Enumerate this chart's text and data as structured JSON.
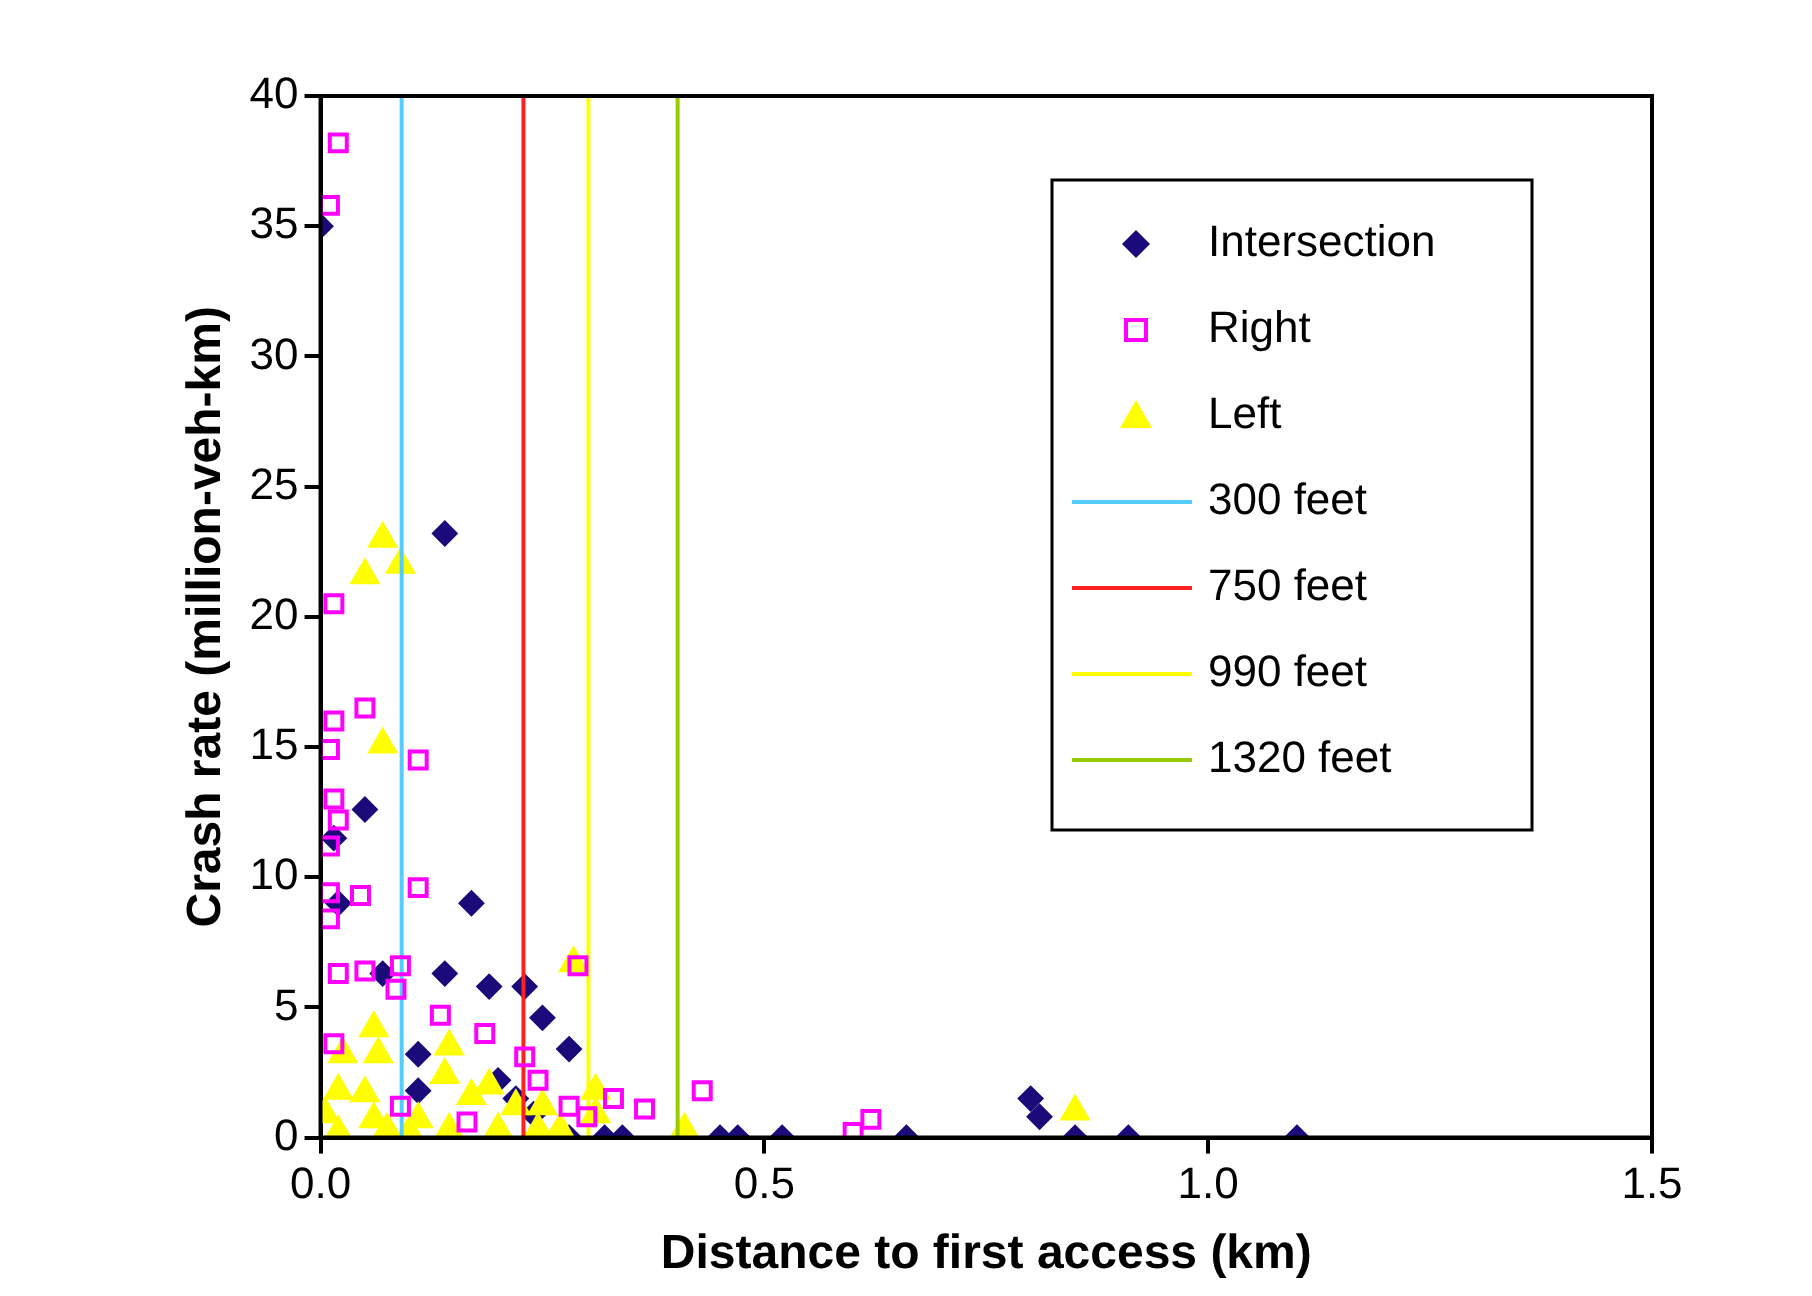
{
  "chart_data": {
    "type": "scatter",
    "xlabel": "Distance to first access (km)",
    "ylabel": "Crash rate (million-veh-km)",
    "xlim": [
      0,
      1.5
    ],
    "xticks": [
      {
        "value": 0,
        "label": "0.0"
      },
      {
        "value": 0.5,
        "label": "0.5"
      },
      {
        "value": 1,
        "label": "1.0"
      },
      {
        "value": 1.5,
        "label": "1.5"
      }
    ],
    "ylim": [
      0,
      40
    ],
    "yticks": [
      0,
      5,
      10,
      15,
      20,
      25,
      30,
      35,
      40
    ],
    "grid": false,
    "legend": "top right",
    "series": [
      {
        "name": "Intersection",
        "color": "#1a0a7a",
        "marker": "diamond",
        "x": [
          0,
          0.14,
          0.05,
          0.015,
          0.02,
          0.17,
          0.07,
          0.14,
          0.19,
          0.23,
          0.25,
          0.28,
          0.11,
          0.11,
          0.2,
          0.22,
          0.24,
          0.28,
          0.32,
          0.34,
          0.45,
          0.47,
          0.52,
          0.66,
          0.8,
          0.81,
          0.85,
          0.91,
          1.1
        ],
        "values": [
          35,
          23.2,
          12.6,
          11.5,
          9,
          9,
          6.3,
          6.3,
          5.8,
          5.8,
          4.6,
          3.4,
          3.2,
          1.8,
          2.2,
          1.5,
          0.9,
          0,
          0,
          0,
          0,
          0,
          0,
          0,
          1.5,
          0.8,
          0,
          0,
          0
        ]
      },
      {
        "name": "Right",
        "color": "#ff00ff",
        "marker": "square",
        "x": [
          0.02,
          0.01,
          0.015,
          0.05,
          0.015,
          0.01,
          0.11,
          0.015,
          0.02,
          0.01,
          0.01,
          0.045,
          0.11,
          0.01,
          0.09,
          0.05,
          0.02,
          0.085,
          0.135,
          0.185,
          0.23,
          0.29,
          0.015,
          0.09,
          0.245,
          0.33,
          0.365,
          0.43,
          0.3,
          0.28,
          0.6,
          0.62,
          0.165
        ],
        "values": [
          38.2,
          35.8,
          20.5,
          16.5,
          16,
          14.9,
          14.5,
          13,
          12.2,
          11.2,
          9.4,
          9.3,
          9.6,
          8.4,
          6.6,
          6.4,
          6.3,
          5.7,
          4.7,
          4,
          3.1,
          6.6,
          3.6,
          1.2,
          2.2,
          1.5,
          1.1,
          1.8,
          0.8,
          1.2,
          0.2,
          0.7,
          0.6
        ]
      },
      {
        "name": "Left",
        "color": "#ffff00",
        "marker": "triangle",
        "x": [
          0.05,
          0.07,
          0.09,
          0.07,
          0.285,
          0.06,
          0.065,
          0.025,
          0.145,
          0.14,
          0.02,
          0.05,
          0.005,
          0.06,
          0.11,
          0.17,
          0.19,
          0.22,
          0.25,
          0.31,
          0.31,
          0.02,
          0.075,
          0.1,
          0.145,
          0.2,
          0.245,
          0.27,
          0.41,
          0.85
        ],
        "values": [
          21.6,
          23,
          22,
          15.1,
          6.7,
          4.2,
          3.2,
          3.2,
          3.5,
          2.4,
          1.8,
          1.7,
          0.9,
          0.7,
          0.7,
          1.6,
          2,
          1.2,
          1.2,
          1.8,
          0.9,
          0.2,
          0.3,
          0.2,
          0.3,
          0.3,
          0.3,
          0.3,
          0.3,
          1
        ]
      },
      {
        "name": "300 feet",
        "type": "line",
        "color": "#55ccff",
        "marker": "none",
        "x": [
          0.0914,
          0.0914
        ],
        "values": [
          0,
          40
        ]
      },
      {
        "name": "750 feet",
        "type": "line",
        "color": "#ff2020",
        "marker": "none",
        "x": [
          0.2286,
          0.2286
        ],
        "values": [
          0,
          40
        ]
      },
      {
        "name": "990 feet",
        "type": "line",
        "color": "#ffff00",
        "marker": "none",
        "x": [
          0.3018,
          0.3018
        ],
        "values": [
          0,
          40
        ]
      },
      {
        "name": "1320 feet",
        "type": "line",
        "color": "#99cc00",
        "marker": "none",
        "x": [
          0.4023,
          0.4023
        ],
        "values": [
          0,
          40
        ]
      }
    ]
  }
}
